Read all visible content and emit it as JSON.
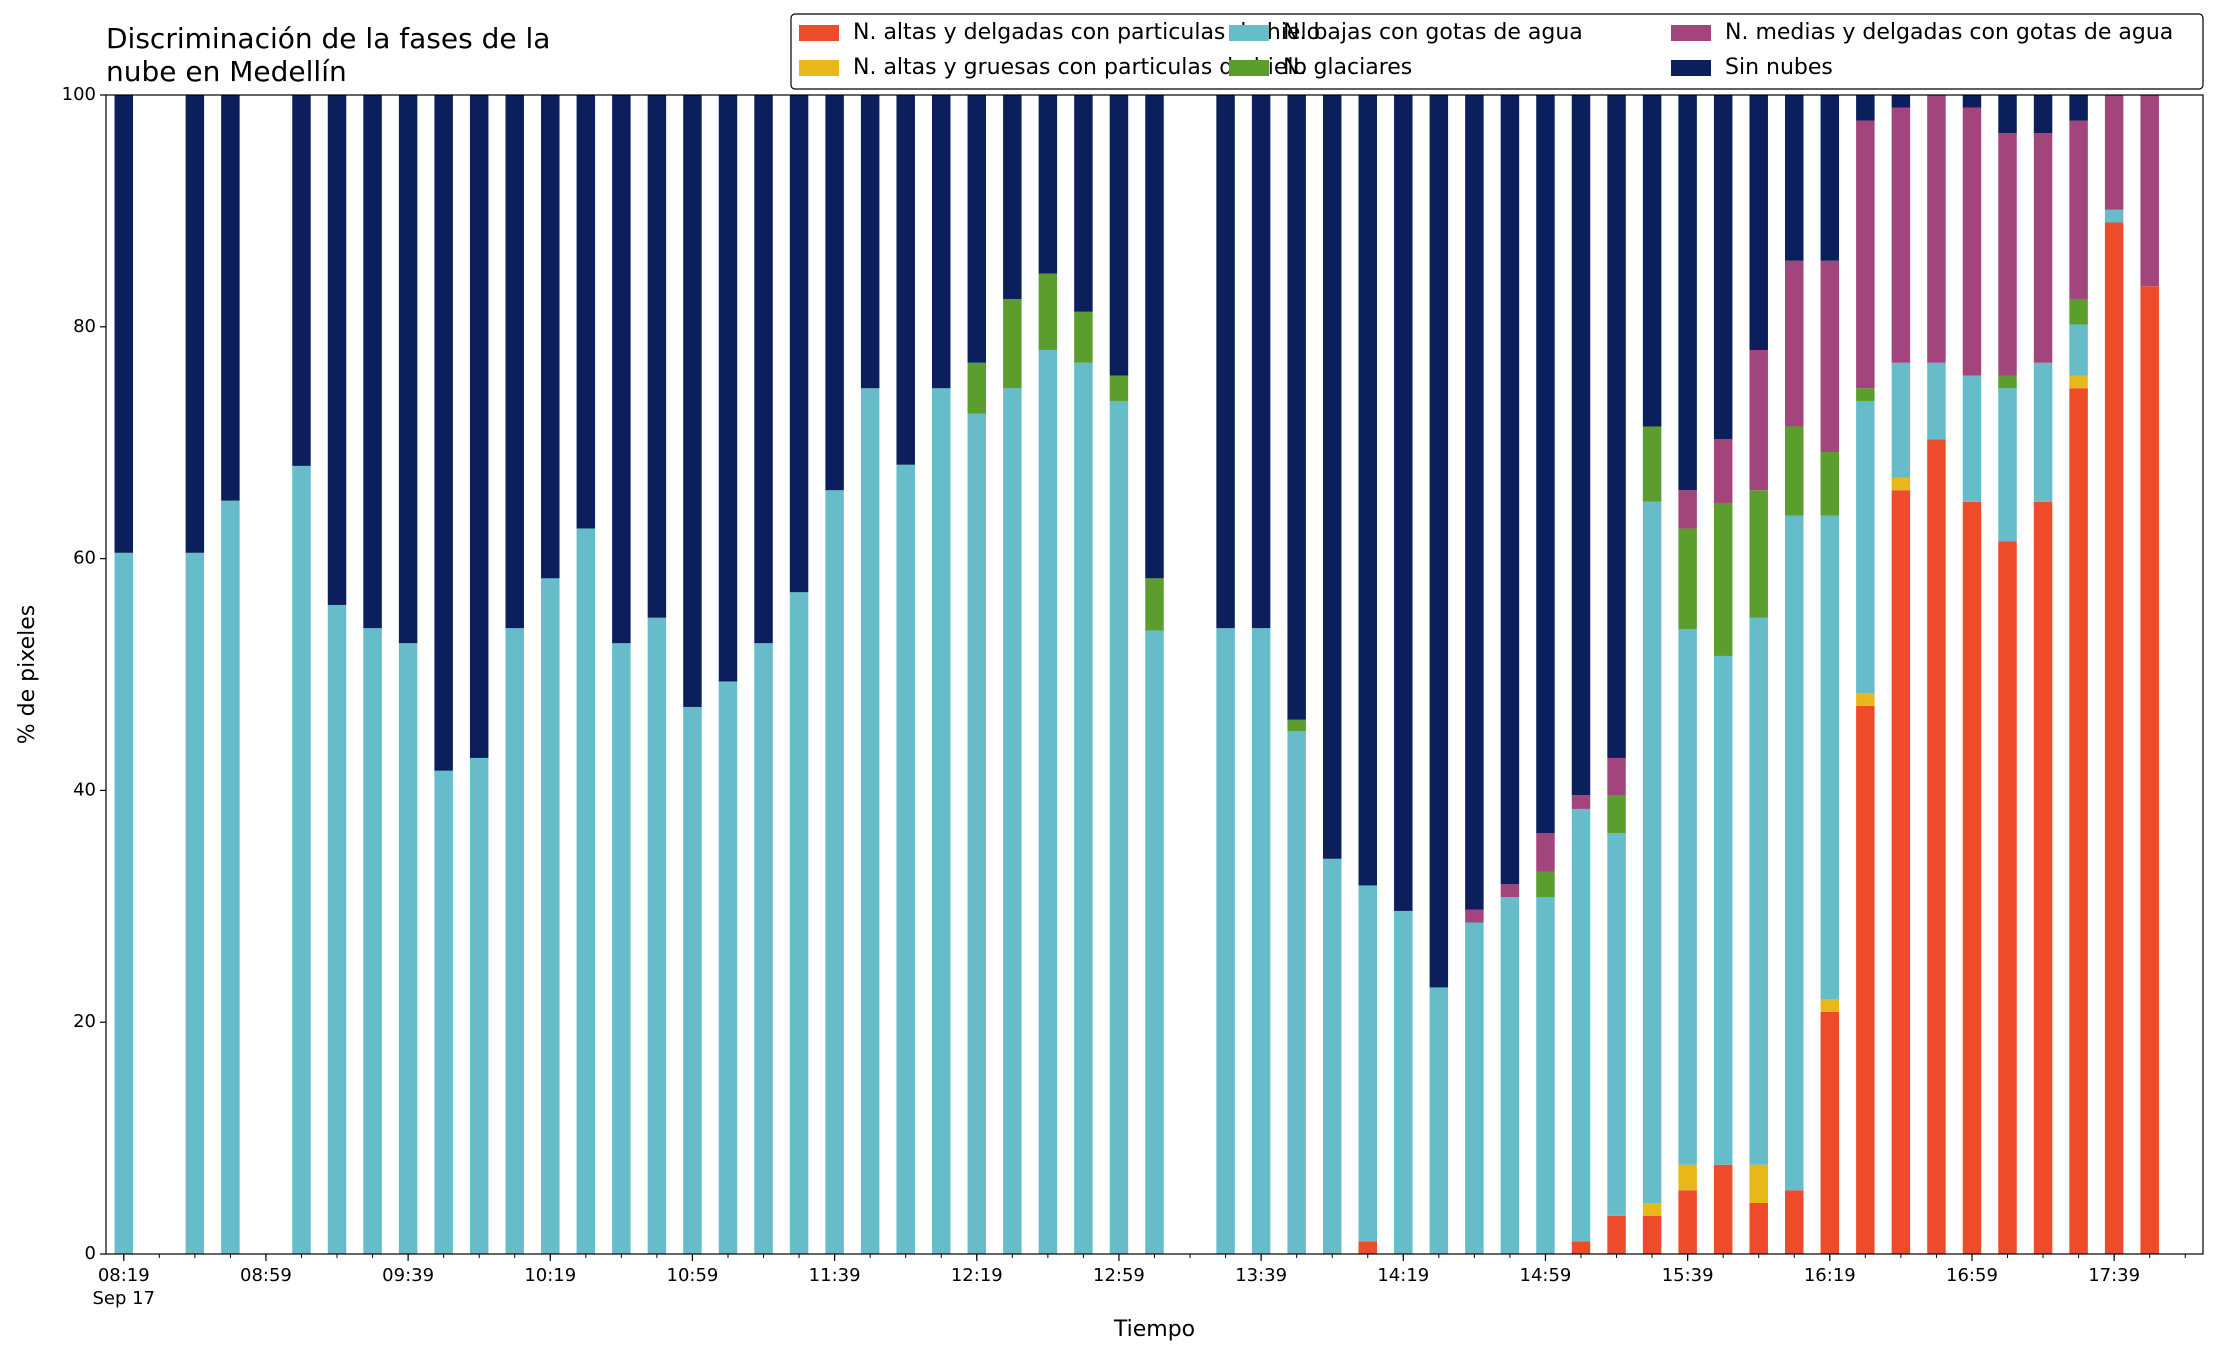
{
  "chart_data": {
    "type": "stacked_bar",
    "title": "Discriminación de la fases de la\nnube en Medellín",
    "xlabel": "Tiempo",
    "ylabel": "% de pixeles",
    "x_date_label": "Sep 17",
    "x": [
      "08:19",
      "08:39",
      "08:49",
      "09:09",
      "09:19",
      "09:29",
      "09:39",
      "09:49",
      "09:59",
      "10:09",
      "10:19",
      "10:29",
      "10:39",
      "10:49",
      "10:59",
      "11:09",
      "11:19",
      "11:29",
      "11:39",
      "11:49",
      "11:59",
      "12:09",
      "12:19",
      "12:29",
      "12:39",
      "12:49",
      "12:59",
      "13:09",
      "13:29",
      "13:39",
      "13:49",
      "13:59",
      "14:09",
      "14:19",
      "14:29",
      "14:39",
      "14:49",
      "14:59",
      "15:09",
      "15:19",
      "15:29",
      "15:39",
      "15:49",
      "15:59",
      "16:09",
      "16:19",
      "16:29",
      "16:39",
      "16:49",
      "16:59",
      "17:09",
      "17:19",
      "17:29",
      "17:39",
      "17:49"
    ],
    "xlim": [
      "08:14",
      "18:04"
    ],
    "xticks": [
      "08:19",
      "08:59",
      "09:39",
      "10:19",
      "10:59",
      "11:39",
      "12:19",
      "12:59",
      "13:39",
      "14:19",
      "14:59",
      "15:39",
      "16:19",
      "16:59",
      "17:39"
    ],
    "ylim": [
      0,
      100
    ],
    "yticks": [
      0,
      20,
      40,
      60,
      80,
      100
    ],
    "legend_loc": "upper right",
    "series": [
      {
        "name": "N. altas y delgadas con particulas de hielo",
        "color": "#ee4b2b",
        "values": [
          0,
          0,
          0,
          0,
          0,
          0,
          0,
          0,
          0,
          0,
          0,
          0,
          0,
          0,
          0,
          0,
          0,
          0,
          0,
          0,
          0,
          0,
          0,
          0,
          0,
          0,
          0,
          0,
          0,
          0,
          0,
          0,
          1.1,
          0,
          0,
          0,
          0,
          0,
          1.1,
          3.3,
          3.3,
          5.5,
          7.7,
          4.4,
          5.5,
          20.9,
          47.3,
          65.9,
          70.3,
          64.9,
          61.5,
          64.9,
          74.7,
          89,
          83.5
        ]
      },
      {
        "name": "N. altas y gruesas con particulas de hielo",
        "color": "#e8b71a",
        "values": [
          0,
          0,
          0,
          0,
          0,
          0,
          0,
          0,
          0,
          0,
          0,
          0,
          0,
          0,
          0,
          0,
          0,
          0,
          0,
          0,
          0,
          0,
          0,
          0,
          0,
          0,
          0,
          0,
          0,
          0,
          0,
          0,
          0,
          0,
          0,
          0,
          0,
          0,
          0,
          0,
          1.1,
          2.2,
          0,
          3.3,
          0,
          1.1,
          1.1,
          1.1,
          0,
          0,
          0,
          0,
          1.1,
          0,
          0
        ]
      },
      {
        "name": "N. bajas con gotas de agua",
        "color": "#66bdc9",
        "values": [
          60.5,
          60.5,
          65,
          68,
          56,
          54,
          52.7,
          41.7,
          42.8,
          54,
          58.3,
          62.6,
          52.7,
          54.9,
          47.2,
          49.4,
          52.7,
          57.1,
          65.9,
          74.7,
          68.1,
          74.7,
          72.5,
          74.7,
          78,
          76.9,
          73.6,
          53.8,
          54,
          54,
          45.1,
          34.1,
          30.7,
          29.6,
          23,
          28.6,
          30.8,
          30.8,
          37.3,
          33,
          60.5,
          46.2,
          43.9,
          47.2,
          58.2,
          41.7,
          25.2,
          9.9,
          6.6,
          10.9,
          13.2,
          12,
          4.4,
          1.1,
          0
        ]
      },
      {
        "name": "N. glaciares",
        "color": "#5c9e2e",
        "values": [
          0,
          0,
          0,
          0,
          0,
          0,
          0,
          0,
          0,
          0,
          0,
          0,
          0,
          0,
          0,
          0,
          0,
          0,
          0,
          0,
          0,
          0,
          4.4,
          7.7,
          6.6,
          4.4,
          2.2,
          4.5,
          0,
          0,
          1,
          0,
          0,
          0,
          0,
          0,
          0,
          2.2,
          0,
          3.3,
          6.5,
          8.7,
          13.2,
          11,
          7.7,
          5.5,
          1.1,
          0,
          0,
          0,
          1.1,
          0,
          2.2,
          0,
          0
        ]
      },
      {
        "name": "N. medias y delgadas con gotas de agua",
        "color": "#a3457d",
        "values": [
          0,
          0,
          0,
          0,
          0,
          0,
          0,
          0,
          0,
          0,
          0,
          0,
          0,
          0,
          0,
          0,
          0,
          0,
          0,
          0,
          0,
          0,
          0,
          0,
          0,
          0,
          0,
          0,
          0,
          0,
          0,
          0,
          0,
          0,
          0,
          1.1,
          1.1,
          3.3,
          1.2,
          3.2,
          0,
          3.3,
          5.5,
          12.1,
          14.3,
          16.5,
          23.1,
          22,
          23.1,
          23.1,
          20.9,
          19.8,
          15.4,
          9.9,
          16.5
        ]
      },
      {
        "name": "Sin nubes",
        "color": "#0a1f5c",
        "values": [
          39.5,
          39.5,
          35,
          32,
          44,
          46,
          47.3,
          58.3,
          57.2,
          46,
          41.7,
          37.4,
          47.3,
          45.1,
          52.8,
          50.6,
          47.3,
          42.9,
          34.1,
          25.3,
          31.9,
          25.3,
          23.1,
          17.6,
          15.4,
          18.7,
          24.2,
          41.7,
          46,
          46,
          53.9,
          65.9,
          68.2,
          70.4,
          77,
          70.3,
          68.1,
          63.7,
          60.4,
          57.2,
          28.6,
          34.1,
          29.7,
          22,
          14.3,
          14.3,
          2.2,
          1.1,
          0,
          1.1,
          3.3,
          3.3,
          2.2,
          0,
          0
        ]
      }
    ]
  }
}
